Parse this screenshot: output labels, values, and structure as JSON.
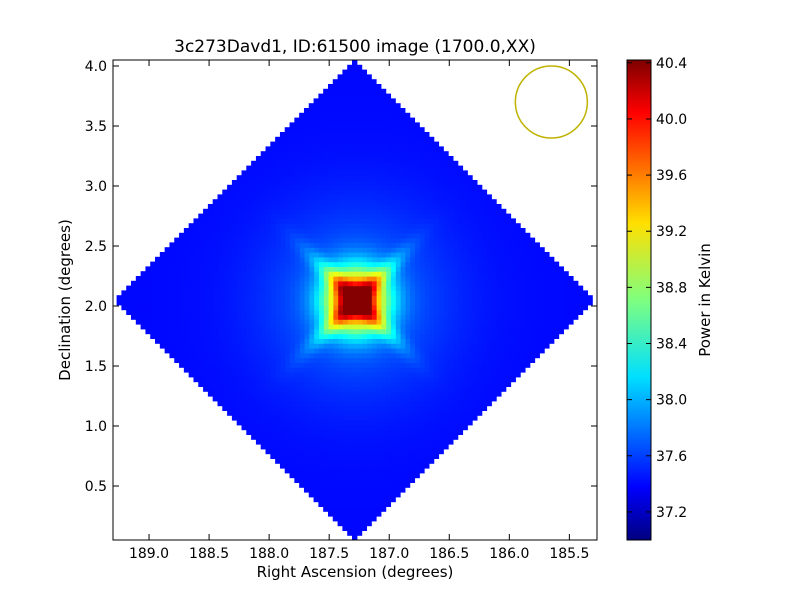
{
  "chart_data": {
    "type": "heatmap",
    "title": "3c273Davd1, ID:61500 image (1700.0,XX)",
    "xlabel": "Right Ascension (degrees)",
    "ylabel": "Declination (degrees)",
    "xlim": [
      189.3,
      185.27
    ],
    "ylim": [
      0.05,
      4.05
    ],
    "x_ticks": [
      "189.0",
      "188.5",
      "188.0",
      "187.5",
      "187.0",
      "186.5",
      "186.0",
      "185.5"
    ],
    "x_tick_values": [
      189.0,
      188.5,
      188.0,
      187.5,
      187.0,
      186.5,
      186.0,
      185.5
    ],
    "y_ticks": [
      "0.5",
      "1.0",
      "1.5",
      "2.0",
      "2.5",
      "3.0",
      "3.5",
      "4.0"
    ],
    "y_tick_values": [
      0.5,
      1.0,
      1.5,
      2.0,
      2.5,
      3.0,
      3.5,
      4.0
    ],
    "colormap": "jet",
    "colorbar": {
      "label": "Power in Kelvin",
      "range": [
        37.0,
        40.42
      ],
      "ticks": [
        "37.2",
        "37.6",
        "38.0",
        "38.4",
        "38.8",
        "39.2",
        "39.6",
        "40.0",
        "40.4"
      ],
      "tick_values": [
        37.2,
        37.6,
        38.0,
        38.4,
        38.8,
        39.2,
        39.6,
        40.0,
        40.4
      ]
    },
    "footprint_center": {
      "ra": 187.28,
      "dec": 2.05
    },
    "footprint_half_diagonal_deg": 2.0,
    "background_level": 37.45,
    "peak": {
      "ra": 187.28,
      "dec": 2.05,
      "value": 40.4
    },
    "beam_circle": {
      "ra": 185.65,
      "dec": 3.7,
      "color": "#bfb300"
    },
    "grid": false,
    "legend": "none"
  }
}
